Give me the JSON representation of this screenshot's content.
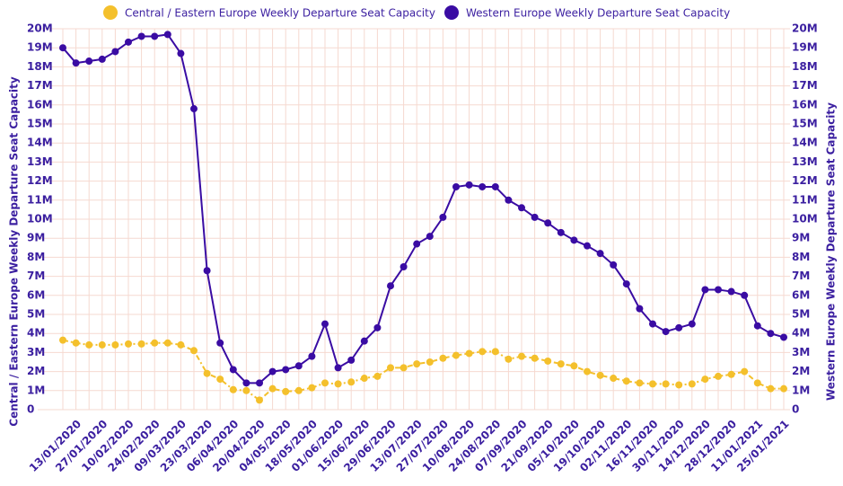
{
  "chart_data": {
    "type": "line",
    "y_label": "Central / Eastern Europe Weekly Departure Seat Capacity",
    "y2_label": "Western Europe Weekly Departure Seat Capacity",
    "categories": [
      null,
      "13/01/2020",
      null,
      "27/01/2020",
      null,
      "10/02/2020",
      null,
      "24/02/2020",
      null,
      "09/03/2020",
      null,
      "23/03/2020",
      null,
      "06/04/2020",
      null,
      "20/04/2020",
      null,
      "04/05/2020",
      null,
      "18/05/2020",
      null,
      "01/06/2020",
      null,
      "15/06/2020",
      null,
      "29/06/2020",
      null,
      "13/07/2020",
      null,
      "27/07/2020",
      null,
      "10/08/2020",
      null,
      "24/08/2020",
      null,
      "07/09/2020",
      null,
      "21/09/2020",
      null,
      "05/10/2020",
      null,
      "19/10/2020",
      null,
      "02/11/2020",
      null,
      "16/11/2020",
      null,
      "30/11/2020",
      null,
      "14/12/2020",
      null,
      "28/12/2020",
      null,
      "11/01/2021",
      null,
      "25/01/2021"
    ],
    "series": [
      {
        "name": "Central / Eastern Europe Weekly Departure Seat Capacity",
        "color": "#f4c02c",
        "dashed": true,
        "values": [
          3650000,
          3500000,
          3400000,
          3400000,
          3400000,
          3450000,
          3450000,
          3500000,
          3500000,
          3400000,
          3100000,
          1900000,
          1600000,
          1050000,
          1000000,
          500000,
          1100000,
          950000,
          1000000,
          1150000,
          1400000,
          1350000,
          1450000,
          1650000,
          1750000,
          2200000,
          2200000,
          2400000,
          2500000,
          2700000,
          2850000,
          2950000,
          3050000,
          3050000,
          2650000,
          2800000,
          2700000,
          2550000,
          2400000,
          2300000,
          2000000,
          1800000,
          1650000,
          1500000,
          1400000,
          1350000,
          1350000,
          1300000,
          1350000,
          1600000,
          1750000,
          1850000,
          2000000,
          1400000,
          1100000,
          1100000
        ]
      },
      {
        "name": "Western Europe Weekly Departure Seat Capacity",
        "color": "#3a0ca3",
        "axis": "y2",
        "dashed": false,
        "values": [
          19000000,
          18200000,
          18300000,
          18400000,
          18800000,
          19300000,
          19600000,
          19600000,
          19700000,
          18700000,
          15800000,
          7300000,
          3500000,
          2100000,
          1400000,
          1400000,
          2000000,
          2100000,
          2300000,
          2800000,
          4500000,
          2200000,
          2600000,
          3600000,
          4300000,
          6500000,
          7500000,
          8700000,
          9100000,
          10100000,
          11700000,
          11800000,
          11700000,
          11700000,
          11000000,
          10600000,
          10100000,
          9800000,
          9300000,
          8900000,
          8600000,
          8200000,
          7600000,
          6600000,
          5300000,
          4500000,
          4100000,
          4300000,
          4500000,
          6300000,
          6300000,
          6200000,
          6000000,
          4400000,
          4000000,
          3800000
        ]
      }
    ],
    "ylim": [
      0,
      20000000
    ],
    "yticks": [
      0,
      {
        "value": 1000000,
        "label": "1M"
      },
      {
        "value": 2000000,
        "label": "2M"
      },
      {
        "value": 3000000,
        "label": "3M"
      },
      {
        "value": 4000000,
        "label": "4M"
      },
      {
        "value": 5000000,
        "label": "5M"
      },
      {
        "value": 6000000,
        "label": "6M"
      },
      {
        "value": 7000000,
        "label": "7M"
      },
      {
        "value": 8000000,
        "label": "8M"
      },
      {
        "value": 9000000,
        "label": "9M"
      },
      {
        "value": 10000000,
        "label": "10M"
      },
      {
        "value": 11000000,
        "label": "11M"
      },
      {
        "value": 12000000,
        "label": "12M"
      },
      {
        "value": 13000000,
        "label": "13M"
      },
      {
        "value": 14000000,
        "label": "14M"
      },
      {
        "value": 15000000,
        "label": "15M"
      },
      {
        "value": 16000000,
        "label": "16M"
      },
      {
        "value": 17000000,
        "label": "17M"
      },
      {
        "value": 18000000,
        "label": "18M"
      },
      {
        "value": 19000000,
        "label": "19M"
      },
      {
        "value": 20000000,
        "label": "20M"
      }
    ],
    "y2lim": [
      0,
      20000000
    ],
    "y2ticks": [
      0,
      {
        "value": 1000000,
        "label": "1M"
      },
      {
        "value": 2000000,
        "label": "2M"
      },
      {
        "value": 3000000,
        "label": "3M"
      },
      {
        "value": 4000000,
        "label": "4M"
      },
      {
        "value": 5000000,
        "label": "5M"
      },
      {
        "value": 6000000,
        "label": "6M"
      },
      {
        "value": 7000000,
        "label": "7M"
      },
      {
        "value": 8000000,
        "label": "8M"
      },
      {
        "value": 9000000,
        "label": "9M"
      },
      {
        "value": 10000000,
        "label": "10M"
      },
      {
        "value": 11000000,
        "label": "11M"
      },
      {
        "value": 12000000,
        "label": "12M"
      },
      {
        "value": 13000000,
        "label": "13M"
      },
      {
        "value": 14000000,
        "label": "14M"
      },
      {
        "value": 15000000,
        "label": "15M"
      },
      {
        "value": 16000000,
        "label": "16M"
      },
      {
        "value": 17000000,
        "label": "17M"
      },
      {
        "value": 18000000,
        "label": "18M"
      },
      {
        "value": 19000000,
        "label": "19M"
      },
      {
        "value": 20000000,
        "label": "20M"
      }
    ],
    "grid": true,
    "legend": "top"
  }
}
